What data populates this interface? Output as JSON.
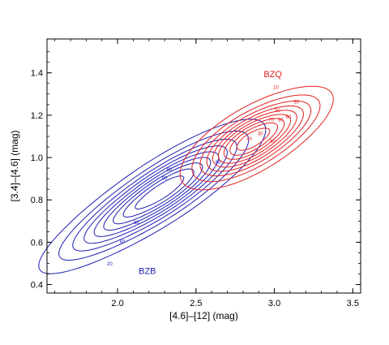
{
  "chart_data": {
    "type": "contour",
    "title": "",
    "xlabel": "[4.6]–[12] (mag)",
    "ylabel": "[3.4]–[4.6] (mag)",
    "xlim": [
      1.55,
      3.55
    ],
    "ylim": [
      0.36,
      1.56
    ],
    "xticks": [
      2.0,
      2.5,
      3.0,
      3.5
    ],
    "yticks": [
      0.4,
      0.6,
      0.8,
      1.0,
      1.2,
      1.4
    ],
    "xtick_labels": [
      "2.0",
      "2.5",
      "3.0",
      "3.5"
    ],
    "ytick_labels": [
      "0.4",
      "0.6",
      "0.8",
      "1.0",
      "1.2",
      "1.4"
    ],
    "grid": false,
    "series": [
      {
        "name": "BZB",
        "color": "#1f1fb4",
        "center": [
          2.28,
          0.84
        ],
        "sigma_major": 0.34,
        "sigma_minor": 0.075,
        "angle_deg": 25,
        "levels": [
          10,
          20,
          30,
          40,
          50,
          60,
          70,
          80,
          90
        ],
        "labeled_levels": [
          {
            "text": "20",
            "x": 1.95,
            "y": 0.49
          },
          {
            "text": "40",
            "x": 2.03,
            "y": 0.595
          },
          {
            "text": "60",
            "x": 2.12,
            "y": 0.685
          },
          {
            "text": "90",
            "x": 2.3,
            "y": 0.895
          },
          {
            "text": "80",
            "x": 2.33,
            "y": 0.935
          },
          {
            "text": "60",
            "x": 2.64,
            "y": 0.97
          }
        ]
      },
      {
        "name": "BZQ",
        "color": "#e02020",
        "center": [
          2.86,
          1.085
        ],
        "sigma_major": 0.23,
        "sigma_minor": 0.075,
        "angle_deg": 22,
        "levels": [
          10,
          20,
          30,
          40,
          50,
          60,
          70,
          80,
          90
        ],
        "labeled_levels": [
          {
            "text": "10",
            "x": 3.01,
            "y": 1.325
          },
          {
            "text": "30",
            "x": 3.14,
            "y": 1.255
          },
          {
            "text": "50",
            "x": 3.02,
            "y": 1.215
          },
          {
            "text": "60",
            "x": 3.09,
            "y": 1.185
          },
          {
            "text": "70",
            "x": 2.98,
            "y": 1.17
          },
          {
            "text": "30",
            "x": 3.04,
            "y": 1.17
          },
          {
            "text": "30",
            "x": 2.91,
            "y": 1.105
          },
          {
            "text": "40",
            "x": 2.84,
            "y": 1.08
          },
          {
            "text": "60",
            "x": 2.99,
            "y": 1.07
          }
        ]
      }
    ],
    "annotations": [
      {
        "text": "BZQ",
        "x": 2.99,
        "y": 1.38,
        "color": "#e02020"
      },
      {
        "text": "BZB",
        "x": 2.19,
        "y": 0.45,
        "color": "#1f1fb4"
      }
    ]
  }
}
